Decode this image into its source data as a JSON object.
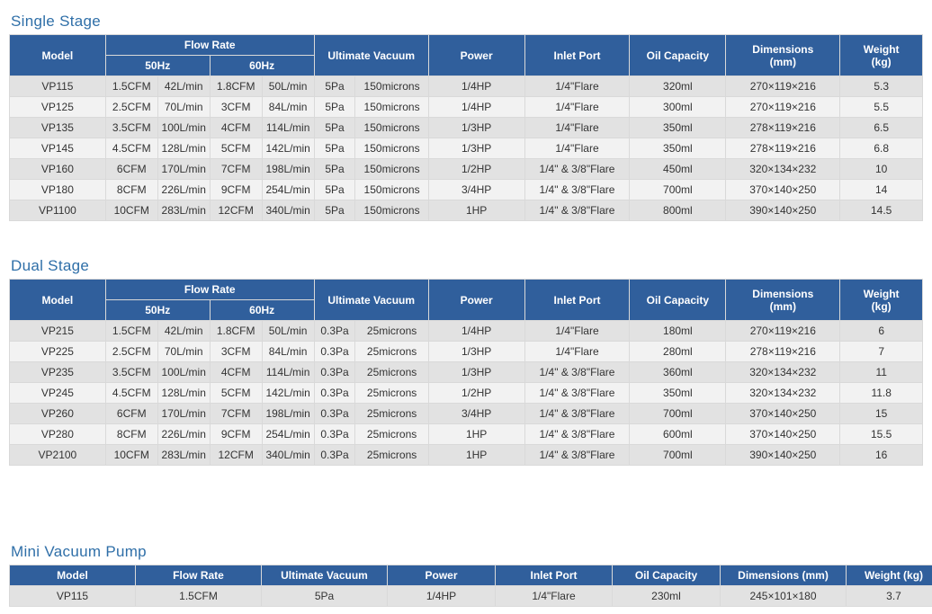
{
  "colors": {
    "header_bg": "#305f9c",
    "header_text": "#ffffff",
    "title_color": "#2f6fa8",
    "row_even_bg": "#f2f2f2",
    "row_odd_bg": "#e2e2e2",
    "border": "#d9d9d9"
  },
  "singleStage": {
    "title": "Single Stage",
    "columns": {
      "model": "Model",
      "flowRate": "Flow Rate",
      "fr50": "50Hz",
      "fr60": "60Hz",
      "vacuum": "Ultimate Vacuum",
      "power": "Power",
      "inlet": "Inlet Port",
      "oil": "Oil Capacity",
      "dims": "Dimensions",
      "dimsUnit": "(mm)",
      "weight": "Weight",
      "weightUnit": "(kg)"
    },
    "rows": [
      {
        "model": "VP115",
        "f50a": "1.5CFM",
        "f50b": "42L/min",
        "f60a": "1.8CFM",
        "f60b": "50L/min",
        "vacA": "5Pa",
        "vacB": "150microns",
        "power": "1/4HP",
        "inlet": "1/4\"Flare",
        "oil": "320ml",
        "dims": "270×119×216",
        "weight": "5.3"
      },
      {
        "model": "VP125",
        "f50a": "2.5CFM",
        "f50b": "70L/min",
        "f60a": "3CFM",
        "f60b": "84L/min",
        "vacA": "5Pa",
        "vacB": "150microns",
        "power": "1/4HP",
        "inlet": "1/4\"Flare",
        "oil": "300ml",
        "dims": "270×119×216",
        "weight": "5.5"
      },
      {
        "model": "VP135",
        "f50a": "3.5CFM",
        "f50b": "100L/min",
        "f60a": "4CFM",
        "f60b": "114L/min",
        "vacA": "5Pa",
        "vacB": "150microns",
        "power": "1/3HP",
        "inlet": "1/4\"Flare",
        "oil": "350ml",
        "dims": "278×119×216",
        "weight": "6.5"
      },
      {
        "model": "VP145",
        "f50a": "4.5CFM",
        "f50b": "128L/min",
        "f60a": "5CFM",
        "f60b": "142L/min",
        "vacA": "5Pa",
        "vacB": "150microns",
        "power": "1/3HP",
        "inlet": "1/4\"Flare",
        "oil": "350ml",
        "dims": "278×119×216",
        "weight": "6.8"
      },
      {
        "model": "VP160",
        "f50a": "6CFM",
        "f50b": "170L/min",
        "f60a": "7CFM",
        "f60b": "198L/min",
        "vacA": "5Pa",
        "vacB": "150microns",
        "power": "1/2HP",
        "inlet": "1/4\" & 3/8\"Flare",
        "oil": "450ml",
        "dims": "320×134×232",
        "weight": "10"
      },
      {
        "model": "VP180",
        "f50a": "8CFM",
        "f50b": "226L/min",
        "f60a": "9CFM",
        "f60b": "254L/min",
        "vacA": "5Pa",
        "vacB": "150microns",
        "power": "3/4HP",
        "inlet": "1/4\" & 3/8\"Flare",
        "oil": "700ml",
        "dims": "370×140×250",
        "weight": "14"
      },
      {
        "model": "VP1100",
        "f50a": "10CFM",
        "f50b": "283L/min",
        "f60a": "12CFM",
        "f60b": "340L/min",
        "vacA": "5Pa",
        "vacB": "150microns",
        "power": "1HP",
        "inlet": "1/4\" & 3/8\"Flare",
        "oil": "800ml",
        "dims": "390×140×250",
        "weight": "14.5"
      }
    ]
  },
  "dualStage": {
    "title": "Dual Stage",
    "columns": {
      "model": "Model",
      "flowRate": "Flow Rate",
      "fr50": "50Hz",
      "fr60": "60Hz",
      "vacuum": "Ultimate Vacuum",
      "power": "Power",
      "inlet": "Inlet Port",
      "oil": "Oil Capacity",
      "dims": "Dimensions",
      "dimsUnit": "(mm)",
      "weight": "Weight",
      "weightUnit": "(kg)"
    },
    "rows": [
      {
        "model": "VP215",
        "f50a": "1.5CFM",
        "f50b": "42L/min",
        "f60a": "1.8CFM",
        "f60b": "50L/min",
        "vacA": "0.3Pa",
        "vacB": "25microns",
        "power": "1/4HP",
        "inlet": "1/4\"Flare",
        "oil": "180ml",
        "dims": "270×119×216",
        "weight": "6"
      },
      {
        "model": "VP225",
        "f50a": "2.5CFM",
        "f50b": "70L/min",
        "f60a": "3CFM",
        "f60b": "84L/min",
        "vacA": "0.3Pa",
        "vacB": "25microns",
        "power": "1/3HP",
        "inlet": "1/4\"Flare",
        "oil": "280ml",
        "dims": "278×119×216",
        "weight": "7"
      },
      {
        "model": "VP235",
        "f50a": "3.5CFM",
        "f50b": "100L/min",
        "f60a": "4CFM",
        "f60b": "114L/min",
        "vacA": "0.3Pa",
        "vacB": "25microns",
        "power": "1/3HP",
        "inlet": "1/4\" & 3/8\"Flare",
        "oil": "360ml",
        "dims": "320×134×232",
        "weight": "11"
      },
      {
        "model": "VP245",
        "f50a": "4.5CFM",
        "f50b": "128L/min",
        "f60a": "5CFM",
        "f60b": "142L/min",
        "vacA": "0.3Pa",
        "vacB": "25microns",
        "power": "1/2HP",
        "inlet": "1/4\" & 3/8\"Flare",
        "oil": "350ml",
        "dims": "320×134×232",
        "weight": "11.8"
      },
      {
        "model": "VP260",
        "f50a": "6CFM",
        "f50b": "170L/min",
        "f60a": "7CFM",
        "f60b": "198L/min",
        "vacA": "0.3Pa",
        "vacB": "25microns",
        "power": "3/4HP",
        "inlet": "1/4\" & 3/8\"Flare",
        "oil": "700ml",
        "dims": "370×140×250",
        "weight": "15"
      },
      {
        "model": "VP280",
        "f50a": "8CFM",
        "f50b": "226L/min",
        "f60a": "9CFM",
        "f60b": "254L/min",
        "vacA": "0.3Pa",
        "vacB": "25microns",
        "power": "1HP",
        "inlet": "1/4\" & 3/8\"Flare",
        "oil": "600ml",
        "dims": "370×140×250",
        "weight": "15.5"
      },
      {
        "model": "VP2100",
        "f50a": "10CFM",
        "f50b": "283L/min",
        "f60a": "12CFM",
        "f60b": "340L/min",
        "vacA": "0.3Pa",
        "vacB": "25microns",
        "power": "1HP",
        "inlet": "1/4\" & 3/8\"Flare",
        "oil": "700ml",
        "dims": "390×140×250",
        "weight": "16"
      }
    ]
  },
  "mini": {
    "title": "Mini Vacuum Pump",
    "columns": {
      "model": "Model",
      "flowRate": "Flow Rate",
      "vacuum": "Ultimate Vacuum",
      "power": "Power",
      "inlet": "Inlet Port",
      "oil": "Oil Capacity",
      "dims": "Dimensions (mm)",
      "weight": "Weight (kg)"
    },
    "rows": [
      {
        "model": "VP115",
        "flowRate": "1.5CFM",
        "vacuum": "5Pa",
        "power": "1/4HP",
        "inlet": "1/4\"Flare",
        "oil": "230ml",
        "dims": "245×101×180",
        "weight": "3.7"
      }
    ]
  },
  "colWidths": {
    "main": [
      105,
      57,
      57,
      57,
      57,
      45,
      80,
      105,
      115,
      105,
      125,
      90
    ],
    "mini": [
      140,
      140,
      140,
      120,
      130,
      120,
      140,
      106
    ]
  }
}
